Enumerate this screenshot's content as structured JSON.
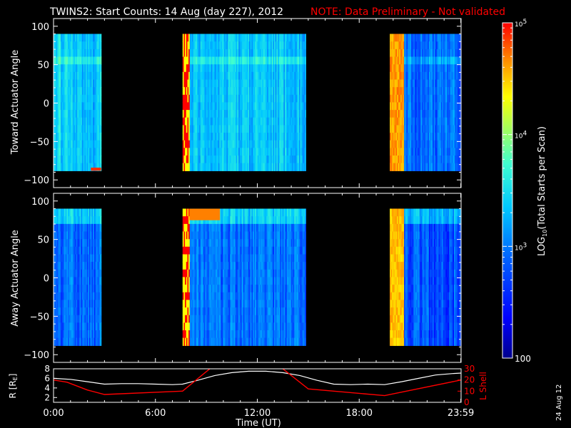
{
  "title": "TWINS2: Start Counts: 14 Aug (day 227), 2012",
  "note": "NOTE: Data Preliminary - Not validated",
  "date_stamp": "24 Aug 12",
  "colors": {
    "background": "#000000",
    "foreground": "#ffffff",
    "note": "#ff0000",
    "lshell": "#ff0000",
    "radius": "#ffffff"
  },
  "chart_data": [
    {
      "type": "heatmap",
      "id": "toward",
      "ylabel": "Toward Actuator Angle",
      "ylim": [
        -110,
        110
      ],
      "yticks": [
        -100,
        -50,
        0,
        50,
        100
      ],
      "xlim": [
        0,
        24
      ],
      "data_intervals_hr": [
        [
          0.0,
          2.8
        ],
        [
          7.6,
          14.85
        ],
        [
          19.8,
          24.0
        ]
      ],
      "gaps_hr": [
        [
          2.8,
          7.6
        ],
        [
          14.85,
          19.8
        ]
      ],
      "angle_range": [
        -88,
        90
      ],
      "approx_log10_counts": {
        "0.0-2.8": 3.0,
        "7.6-8.0": 4.8,
        "8.0-14.85": 3.0,
        "19.8-20.6": 4.3,
        "20.6-24.0": 2.7
      }
    },
    {
      "type": "heatmap",
      "id": "away",
      "ylabel": "Away Actuator Angle",
      "ylim": [
        -110,
        110
      ],
      "yticks": [
        -100,
        -50,
        0,
        50,
        100
      ],
      "xlim": [
        0,
        24
      ],
      "data_intervals_hr": [
        [
          0.0,
          2.8
        ],
        [
          7.6,
          14.85
        ],
        [
          19.8,
          24.0
        ]
      ],
      "gaps_hr": [
        [
          2.8,
          7.6
        ],
        [
          14.85,
          19.8
        ]
      ],
      "angle_range": [
        -88,
        90
      ],
      "approx_log10_counts": {
        "0.0-2.8": 2.7,
        "7.6-8.0": 4.8,
        "8.0-14.85": 2.7,
        "19.8-20.6": 4.2,
        "20.6-24.0": 2.6
      }
    },
    {
      "type": "line",
      "id": "orbit",
      "ylabel_left": "R [R",
      "ylabel_left_sub": "E",
      "ylabel_left_end": "]",
      "ylabel_right": "L Shell",
      "xlabel": "Time (UT)",
      "xticks": [
        "0:00",
        "6:00",
        "12:00",
        "18:00",
        "23:59"
      ],
      "xtick_hours": [
        0,
        6,
        12,
        18,
        23.983
      ],
      "ylim_left": [
        1,
        8
      ],
      "yticks_left": [
        2,
        4,
        6,
        8
      ],
      "ylim_right": [
        0,
        30
      ],
      "yticks_right": [
        0,
        10,
        20,
        30
      ],
      "series": [
        {
          "name": "R",
          "axis": "left",
          "x": [
            0,
            1,
            2,
            3,
            4,
            5,
            6,
            7,
            7.6,
            8.5,
            9.5,
            10.5,
            11.5,
            12,
            12.5,
            13.5,
            14.5,
            15.5,
            16.5,
            17.5,
            18.5,
            19.5,
            20.5,
            21.5,
            22.5,
            23.5,
            24
          ],
          "values": [
            6.0,
            5.8,
            5.3,
            4.8,
            4.9,
            4.9,
            4.8,
            4.7,
            4.8,
            5.6,
            6.6,
            7.2,
            7.5,
            7.5,
            7.5,
            7.2,
            6.6,
            5.6,
            4.8,
            4.7,
            4.8,
            4.7,
            5.3,
            6.0,
            6.7,
            7.0,
            7.1
          ]
        },
        {
          "name": "L Shell",
          "axis": "right",
          "x": [
            0,
            0.8,
            2.0,
            3.0,
            7.6,
            9.2
          ],
          "values": [
            20,
            18,
            11,
            7,
            10,
            30
          ],
          "x2": [
            13.5,
            15.0,
            19.5,
            24
          ],
          "values2": [
            30,
            12,
            6,
            20
          ]
        }
      ]
    }
  ],
  "colorbar": {
    "label": "LOG10(Total Starts per Scan)",
    "label_main": "LOG",
    "label_sub": "10",
    "label_rest": "(Total Starts per Scan)",
    "ticks": [
      "100",
      "10^3",
      "10^4",
      "10^5"
    ],
    "tick_values": [
      2,
      3,
      4,
      5
    ],
    "range_log10": [
      2,
      5
    ],
    "colormap": [
      "#00008c",
      "#0000ff",
      "#0064ff",
      "#00c8ff",
      "#40ffd0",
      "#a0ff60",
      "#ffff00",
      "#ff9600",
      "#ff0000",
      "#ff0000"
    ]
  }
}
